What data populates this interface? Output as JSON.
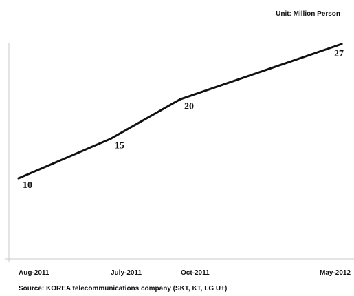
{
  "chart_data": {
    "type": "line",
    "unit": "Unit: Million Person",
    "source": "Source: KOREA telecommunications company (SKT, KT, LG U+)",
    "categories": [
      "Aug-2011",
      "July-2011",
      "Oct-2011",
      "May-2012"
    ],
    "series": [
      {
        "values": [
          10,
          15,
          20,
          27
        ]
      }
    ],
    "data_labels": [
      "10",
      "15",
      "20",
      "27"
    ],
    "ylim": [
      0,
      28
    ],
    "grid": false,
    "legend": "none",
    "line_color": "#111111",
    "axis_color": "#c8c8c8"
  }
}
